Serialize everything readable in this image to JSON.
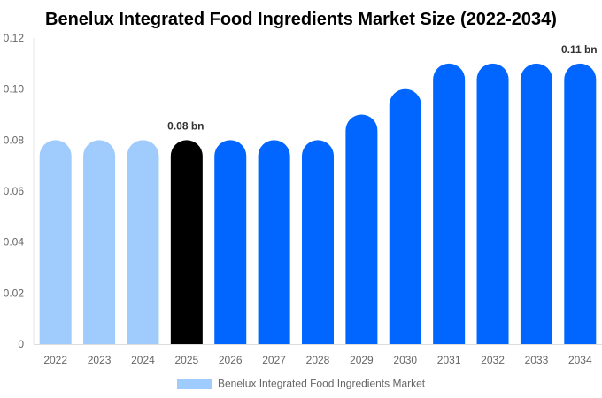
{
  "chart_data": {
    "type": "bar",
    "title": "Benelux Integrated Food Ingredients Market Size (2022-2034)",
    "categories": [
      "2022",
      "2023",
      "2024",
      "2025",
      "2026",
      "2027",
      "2028",
      "2029",
      "2030",
      "2031",
      "2032",
      "2033",
      "2034"
    ],
    "series": [
      {
        "name": "Benelux Integrated Food Ingredients Market",
        "values": [
          0.08,
          0.08,
          0.08,
          0.08,
          0.08,
          0.08,
          0.08,
          0.09,
          0.1,
          0.11,
          0.11,
          0.11,
          0.11
        ]
      }
    ],
    "ylim": [
      0,
      0.12
    ],
    "yticks": [
      "0",
      "0.02",
      "0.04",
      "0.06",
      "0.08",
      "0.10",
      "0.12"
    ],
    "data_labels": [
      {
        "category": "2025",
        "text": "0.08 bn"
      },
      {
        "category": "2034",
        "text": "0.11 bn"
      }
    ],
    "colors": {
      "historical": "#a0cbfd",
      "current": "#000000",
      "forecast": "#0066ff"
    },
    "bar_color_groups": [
      "historical",
      "historical",
      "historical",
      "current",
      "forecast",
      "forecast",
      "forecast",
      "forecast",
      "forecast",
      "forecast",
      "forecast",
      "forecast",
      "forecast"
    ],
    "legend_position": "bottom",
    "grid": false
  }
}
